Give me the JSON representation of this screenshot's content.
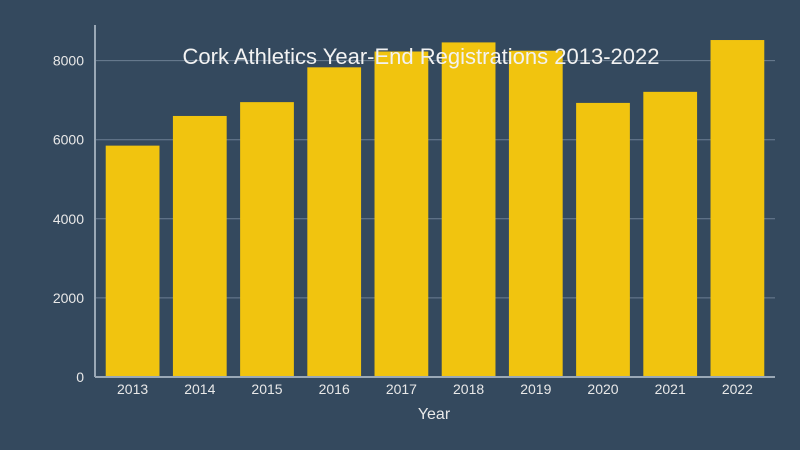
{
  "chart_data": {
    "type": "bar",
    "title": "Cork Athletics Year-End Registrations 2013-2022",
    "xlabel": "Year",
    "ylabel": "",
    "categories": [
      "2013",
      "2014",
      "2015",
      "2016",
      "2017",
      "2018",
      "2019",
      "2020",
      "2021",
      "2022"
    ],
    "values": [
      5850,
      6600,
      6950,
      7830,
      8230,
      8460,
      8250,
      6930,
      7210,
      8520
    ],
    "ylim": [
      0,
      8900
    ],
    "yticks": [
      0,
      2000,
      4000,
      6000,
      8000
    ],
    "grid": true,
    "legend": "none",
    "colors": {
      "background": "#34495e",
      "bar": "#f1c40f",
      "grid": "#6c7f93",
      "axis": "#9aa8b6",
      "text": "#e8e8e8"
    }
  }
}
